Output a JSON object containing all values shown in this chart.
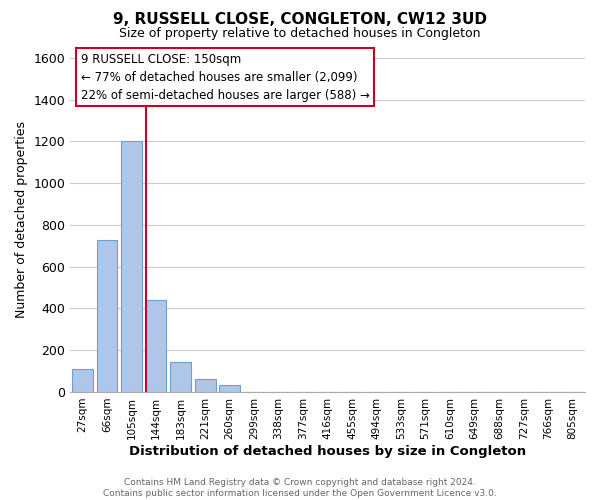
{
  "title": "9, RUSSELL CLOSE, CONGLETON, CW12 3UD",
  "subtitle": "Size of property relative to detached houses in Congleton",
  "xlabel": "Distribution of detached houses by size in Congleton",
  "ylabel": "Number of detached properties",
  "bar_labels": [
    "27sqm",
    "66sqm",
    "105sqm",
    "144sqm",
    "183sqm",
    "221sqm",
    "260sqm",
    "299sqm",
    "338sqm",
    "377sqm",
    "416sqm",
    "455sqm",
    "494sqm",
    "533sqm",
    "571sqm",
    "610sqm",
    "649sqm",
    "688sqm",
    "727sqm",
    "766sqm",
    "805sqm"
  ],
  "bar_values": [
    110,
    730,
    1200,
    440,
    145,
    60,
    35,
    0,
    0,
    0,
    0,
    0,
    0,
    0,
    0,
    0,
    0,
    0,
    0,
    0,
    0
  ],
  "bar_color": "#aec6e8",
  "bar_edge_color": "#6fa0d0",
  "highlight_color": "#cc0022",
  "vline_bar_index": 3,
  "ylim": [
    0,
    1650
  ],
  "yticks": [
    0,
    200,
    400,
    600,
    800,
    1000,
    1200,
    1400,
    1600
  ],
  "annotation_title": "9 RUSSELL CLOSE: 150sqm",
  "annotation_line1": "← 77% of detached houses are smaller (2,099)",
  "annotation_line2": "22% of semi-detached houses are larger (588) →",
  "footer_line1": "Contains HM Land Registry data © Crown copyright and database right 2024.",
  "footer_line2": "Contains public sector information licensed under the Open Government Licence v3.0.",
  "background_color": "#ffffff",
  "grid_color": "#cccccc"
}
